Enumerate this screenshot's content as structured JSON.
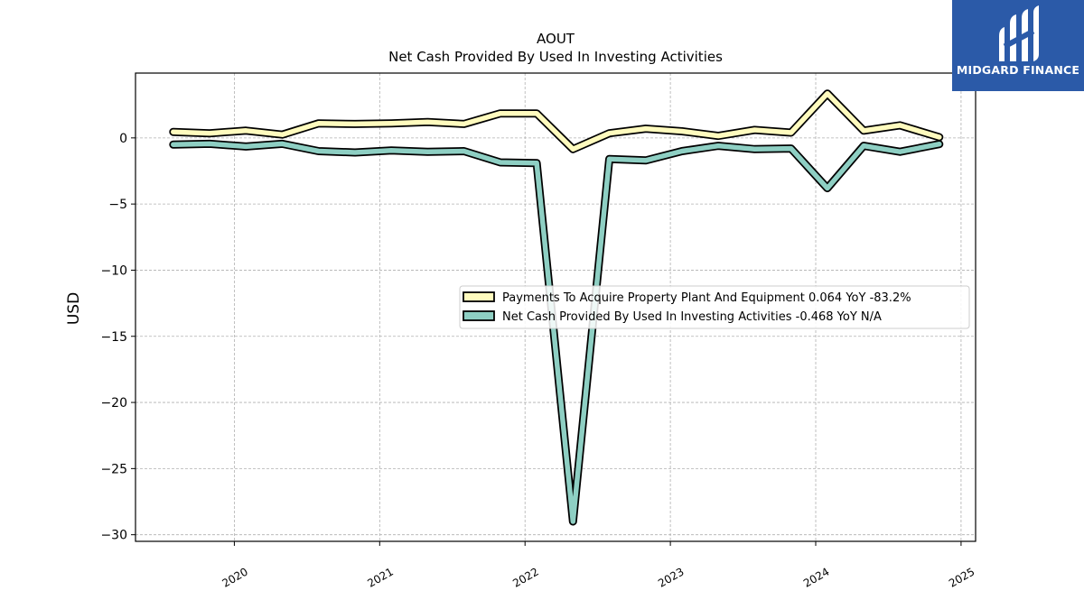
{
  "watermark": {
    "brand": "MIDGARD FINANCE",
    "bg_color": "#2b5aa8"
  },
  "chart_data": {
    "type": "line",
    "title": "AOUT",
    "subtitle": "Net Cash Provided By Used In Investing Activities",
    "ylabel": "USD",
    "xlabel": "",
    "ylim": [
      -30.5,
      4.9
    ],
    "xlim": [
      2019.32,
      2025.1
    ],
    "x_ticks": [
      "2020",
      "2021",
      "2022",
      "2023",
      "2024",
      "2025"
    ],
    "y_ticks": [
      0,
      -5,
      -10,
      -15,
      -20,
      -25,
      -30
    ],
    "y_tick_labels": [
      "0",
      "−5",
      "−10",
      "−15",
      "−20",
      "−25",
      "−30"
    ],
    "grid": true,
    "legend_position": "center-right",
    "x": [
      2019.58,
      2019.83,
      2020.08,
      2020.33,
      2020.58,
      2020.83,
      2021.08,
      2021.33,
      2021.58,
      2021.83,
      2022.08,
      2022.33,
      2022.58,
      2022.83,
      2023.08,
      2023.33,
      2023.58,
      2023.83,
      2024.08,
      2024.33,
      2024.58,
      2024.85
    ],
    "series": [
      {
        "name": "Payments To Acquire Property Plant And Equipment  0.064 YoY -83.2%",
        "color": "#fffbbe",
        "values": [
          0.45,
          0.35,
          0.55,
          0.25,
          1.1,
          1.05,
          1.1,
          1.2,
          1.05,
          1.85,
          1.85,
          -0.85,
          0.35,
          0.7,
          0.5,
          0.15,
          0.6,
          0.4,
          3.35,
          0.55,
          0.95,
          0.06
        ]
      },
      {
        "name": "Net Cash Provided By Used In Investing Activities  -0.468 YoY N/A",
        "color": "#8ecfc3",
        "values": [
          -0.5,
          -0.45,
          -0.65,
          -0.45,
          -1.0,
          -1.1,
          -0.95,
          -1.05,
          -1.0,
          -1.85,
          -1.9,
          -29.0,
          -1.6,
          -1.7,
          -1.0,
          -0.6,
          -0.85,
          -0.8,
          -3.8,
          -0.6,
          -1.05,
          -0.47
        ]
      }
    ]
  }
}
